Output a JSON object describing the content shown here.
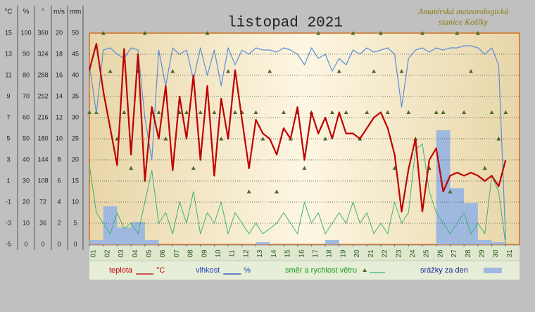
{
  "chart_data": {
    "type": "weather",
    "title": "listopad 2021",
    "station": [
      "Amatérská meteorologická",
      "stanice Košíky"
    ],
    "xlim": [
      1,
      32
    ],
    "xticks": [
      {
        "value": 1,
        "label": "01"
      },
      {
        "value": 2,
        "label": "02"
      },
      {
        "value": 3,
        "label": "03"
      },
      {
        "value": 4,
        "label": "04"
      },
      {
        "value": 5,
        "label": "05"
      },
      {
        "value": 6,
        "label": "06"
      },
      {
        "value": 7,
        "label": "07"
      },
      {
        "value": 8,
        "label": "08"
      },
      {
        "value": 9,
        "label": "09"
      },
      {
        "value": 10,
        "label": "10"
      },
      {
        "value": 11,
        "label": "11"
      },
      {
        "value": 12,
        "label": "12"
      },
      {
        "value": 13,
        "label": "13"
      },
      {
        "value": 14,
        "label": "14"
      },
      {
        "value": 15,
        "label": "15"
      },
      {
        "value": 16,
        "label": "16"
      },
      {
        "value": 17,
        "label": "17"
      },
      {
        "value": 18,
        "label": "18"
      },
      {
        "value": 19,
        "label": "19"
      },
      {
        "value": 20,
        "label": "20"
      },
      {
        "value": 21,
        "label": "21"
      },
      {
        "value": 22,
        "label": "22"
      },
      {
        "value": 23,
        "label": "23"
      },
      {
        "value": 24,
        "label": "24"
      },
      {
        "value": 25,
        "label": "25"
      },
      {
        "value": 26,
        "label": "26"
      },
      {
        "value": 27,
        "label": "27"
      },
      {
        "value": 28,
        "label": "28"
      },
      {
        "value": 29,
        "label": "29"
      },
      {
        "value": 30,
        "label": "30"
      },
      {
        "value": 31,
        "label": "31"
      }
    ],
    "y_axes": [
      {
        "label": "°C",
        "lim": [
          -5,
          15
        ],
        "ticks": [
          15,
          13,
          11,
          9,
          7,
          5,
          3,
          1,
          -1,
          -3,
          -5
        ]
      },
      {
        "label": "%",
        "lim": [
          0,
          100
        ],
        "ticks": [
          100,
          90,
          80,
          70,
          60,
          50,
          40,
          30,
          20,
          10,
          0
        ]
      },
      {
        "label": "°",
        "lim": [
          0,
          360
        ],
        "ticks": [
          360,
          324,
          288,
          252,
          216,
          180,
          144,
          108,
          72,
          36,
          0
        ]
      },
      {
        "label": "m/s",
        "lim": [
          0,
          20
        ],
        "ticks": [
          20,
          18,
          16,
          14,
          12,
          10,
          8,
          6,
          4,
          2,
          0
        ]
      },
      {
        "label": "mm",
        "lim": [
          0,
          50
        ],
        "ticks": [
          50,
          45,
          40,
          35,
          30,
          25,
          20,
          15,
          10,
          5,
          0
        ]
      }
    ],
    "grid": true,
    "x": [
      1,
      1.5,
      2,
      2.5,
      3,
      3.5,
      4,
      4.5,
      5,
      5.5,
      6,
      6.5,
      7,
      7.5,
      8,
      8.5,
      9,
      9.5,
      10,
      10.5,
      11,
      11.5,
      12,
      12.5,
      13,
      13.5,
      14,
      14.5,
      15,
      15.5,
      16,
      16.5,
      17,
      17.5,
      18,
      18.5,
      19,
      19.5,
      20,
      20.5,
      21,
      21.5,
      22,
      22.5,
      23,
      23.5,
      24,
      24.5,
      25,
      25.5,
      26,
      26.5,
      27,
      27.5,
      28,
      28.5,
      29,
      29.5,
      30,
      30.5,
      31
    ],
    "series": [
      {
        "name": "teplota",
        "kind": "line",
        "axis": 0,
        "color": "#c00000",
        "width": 2.2,
        "values": [
          11.5,
          14,
          9.5,
          6,
          2.5,
          13.5,
          3.5,
          13,
          1,
          8,
          5,
          10,
          2,
          9,
          5,
          11,
          3,
          10,
          1.5,
          8.8,
          5,
          11.5,
          6.8,
          2.2,
          6.8,
          5.5,
          5,
          3.5,
          6,
          5,
          8,
          3,
          7.5,
          5.5,
          7,
          5,
          7.5,
          5.5,
          5.5,
          5,
          6,
          7,
          7.5,
          6,
          3.5,
          -1.9,
          2.1,
          5,
          -1.9,
          3,
          4.1,
          0,
          1.5,
          1.8,
          1.5,
          1.8,
          1.5,
          1,
          1.5,
          0.5,
          3
        ]
      },
      {
        "name": "vlhkost",
        "kind": "line",
        "axis": 1,
        "color": "#5b8fd8",
        "width": 1.2,
        "values": [
          85,
          62,
          92,
          93,
          90,
          88,
          93,
          92,
          60,
          40,
          92,
          75,
          93,
          90,
          92,
          78,
          93,
          80,
          92,
          75,
          93,
          85,
          92,
          90,
          93,
          92,
          92,
          91,
          93,
          92,
          90,
          85,
          93,
          88,
          90,
          82,
          88,
          85,
          92,
          90,
          93,
          91,
          92,
          93,
          90,
          65,
          88,
          92,
          93,
          91,
          93,
          92,
          93,
          93,
          94,
          94,
          93,
          90,
          93,
          85,
          2
        ]
      },
      {
        "name": "směr a rychlost větru",
        "kind": "line",
        "axis": 3,
        "color": "#3cb371",
        "width": 1,
        "values": [
          7.5,
          3,
          2,
          1,
          3,
          1.5,
          2,
          1,
          4,
          7,
          2,
          3,
          1,
          4,
          2,
          5,
          1,
          3,
          2,
          4,
          1,
          3,
          2,
          1,
          2,
          1,
          1.5,
          2,
          3,
          2,
          1,
          4,
          2,
          3,
          1,
          2,
          3,
          2,
          4,
          2,
          3,
          1,
          2,
          1,
          4,
          2,
          3,
          9,
          9.5,
          5,
          3,
          2,
          1,
          2,
          3,
          1,
          2,
          1,
          6.5,
          5,
          0
        ],
        "direction": {
          "axis": 2,
          "color": "#4a6a2a",
          "values": [
            225,
            225,
            360,
            295,
            180,
            225,
            130,
            295,
            360,
            225,
            225,
            180,
            295,
            225,
            225,
            130,
            225,
            360,
            225,
            180,
            295,
            225,
            225,
            90,
            225,
            180,
            295,
            90,
            225,
            180,
            225,
            130,
            225,
            360,
            180,
            225,
            295,
            225,
            360,
            180,
            225,
            295,
            360,
            225,
            130,
            295,
            225,
            180,
            360,
            130,
            225,
            225,
            90,
            360,
            225,
            295,
            360,
            130,
            225,
            180,
            225
          ]
        }
      },
      {
        "name": "srážky za den",
        "kind": "bar",
        "axis": 4,
        "color": "#9fb8e0",
        "x": [
          1,
          2,
          3,
          4,
          5,
          6,
          7,
          8,
          9,
          10,
          11,
          12,
          13,
          14,
          15,
          16,
          17,
          18,
          19,
          20,
          21,
          22,
          23,
          24,
          25,
          26,
          27,
          28,
          29,
          30,
          31
        ],
        "values": [
          1,
          9,
          4,
          5.3,
          1,
          0,
          0,
          0,
          0,
          0,
          0,
          0,
          0.5,
          0,
          0,
          0,
          0,
          1,
          0,
          0,
          0,
          0,
          0,
          0,
          0,
          27,
          13.3,
          9.8,
          1,
          0.5,
          0
        ]
      }
    ]
  }
}
